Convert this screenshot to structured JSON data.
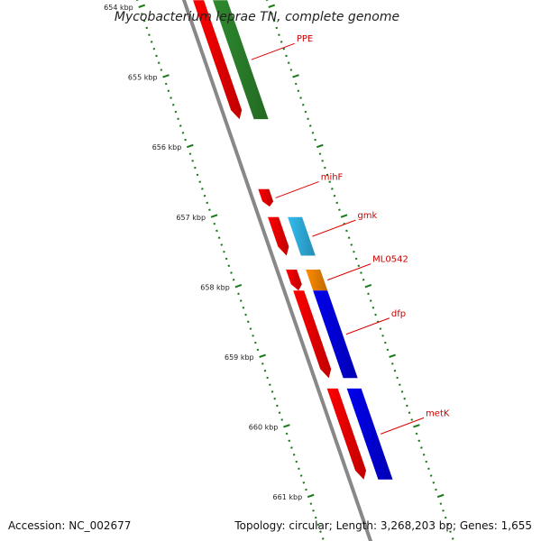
{
  "title": "Mycobacterium leprae TN, complete genome",
  "footer": {
    "accession": "Accession: NC_002677",
    "summary": "Topology: circular; Length: 3,268,203 bp; Genes: 1,655"
  },
  "colors": {
    "backbone": "#888888",
    "ticks": "#1a7a1a",
    "label_line": "#dd0000",
    "label_text": "#cc0000"
  },
  "kbp_ticks": [
    {
      "kbp": 654,
      "label": "654 kbp"
    },
    {
      "kbp": 655,
      "label": "655 kbp"
    },
    {
      "kbp": 656,
      "label": "656 kbp"
    },
    {
      "kbp": 657,
      "label": "657 kbp"
    },
    {
      "kbp": 658,
      "label": "658 kbp"
    },
    {
      "kbp": 659,
      "label": "659 kbp"
    },
    {
      "kbp": 660,
      "label": "660 kbp"
    },
    {
      "kbp": 661,
      "label": "661 kbp"
    }
  ],
  "genes": [
    {
      "label": "PPE",
      "strand": "minus",
      "lane": "forward",
      "color": "#ff0000",
      "start": 653.9,
      "end": 655.6,
      "show_label": false
    },
    {
      "label": "PPE",
      "strand": "plus",
      "lane": "cds",
      "color": "#2e8b2e",
      "start": 653.9,
      "end": 655.6,
      "show_label": true
    },
    {
      "label": "mihF",
      "strand": "minus",
      "lane": "forward",
      "color": "#ff0000",
      "start": 656.6,
      "end": 656.85,
      "show_label": true
    },
    {
      "label": "gmk",
      "strand": "minus",
      "lane": "forward",
      "color": "#ff0000",
      "start": 657.0,
      "end": 657.55,
      "show_label": false
    },
    {
      "label": "gmk",
      "strand": "plus",
      "lane": "cds",
      "color": "#33bbee",
      "start": 657.0,
      "end": 657.55,
      "show_label": true
    },
    {
      "label": "ML0542",
      "strand": "minus",
      "lane": "forward",
      "color": "#ff0000",
      "start": 657.75,
      "end": 658.05,
      "show_label": false
    },
    {
      "label": "ML0542",
      "strand": "plus",
      "lane": "cds",
      "color": "#ff8c00",
      "start": 657.75,
      "end": 658.05,
      "show_label": true
    },
    {
      "label": "dfp",
      "strand": "minus",
      "lane": "forward",
      "color": "#ff0000",
      "start": 658.05,
      "end": 659.3,
      "show_label": false
    },
    {
      "label": "dfp",
      "strand": "plus",
      "lane": "cds",
      "color": "#0000ee",
      "start": 658.05,
      "end": 659.3,
      "show_label": true
    },
    {
      "label": "metK",
      "strand": "minus",
      "lane": "forward",
      "color": "#ff0000",
      "start": 659.45,
      "end": 660.75,
      "show_label": false
    },
    {
      "label": "metK",
      "strand": "plus",
      "lane": "cds",
      "color": "#0000ee",
      "start": 659.45,
      "end": 660.75,
      "show_label": true
    }
  ]
}
